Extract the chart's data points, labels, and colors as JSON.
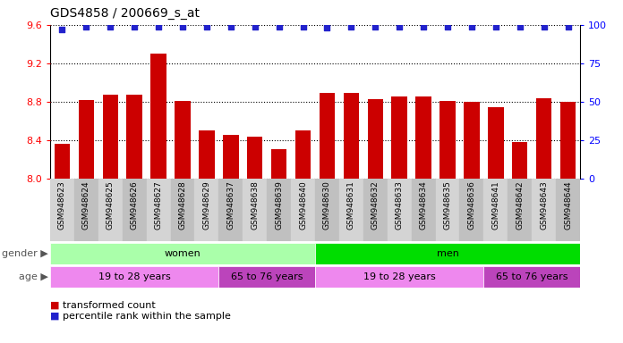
{
  "title": "GDS4858 / 200669_s_at",
  "samples": [
    "GSM948623",
    "GSM948624",
    "GSM948625",
    "GSM948626",
    "GSM948627",
    "GSM948628",
    "GSM948629",
    "GSM948637",
    "GSM948638",
    "GSM948639",
    "GSM948640",
    "GSM948630",
    "GSM948631",
    "GSM948632",
    "GSM948633",
    "GSM948634",
    "GSM948635",
    "GSM948636",
    "GSM948641",
    "GSM948642",
    "GSM948643",
    "GSM948644"
  ],
  "bar_values": [
    8.36,
    8.82,
    8.87,
    8.87,
    9.3,
    8.81,
    8.5,
    8.46,
    8.44,
    8.31,
    8.5,
    8.89,
    8.89,
    8.83,
    8.86,
    8.86,
    8.81,
    8.8,
    8.74,
    8.38,
    8.84,
    8.8
  ],
  "percentile_values": [
    97,
    99,
    99,
    99,
    99,
    99,
    99,
    99,
    99,
    99,
    99,
    98,
    99,
    99,
    99,
    99,
    99,
    99,
    99,
    99,
    99,
    99
  ],
  "bar_color": "#cc0000",
  "dot_color": "#2222cc",
  "ylim_left": [
    8.0,
    9.6
  ],
  "ylim_right": [
    0,
    100
  ],
  "yticks_left": [
    8.0,
    8.4,
    8.8,
    9.2,
    9.6
  ],
  "yticks_right": [
    0,
    25,
    50,
    75,
    100
  ],
  "gender_groups": [
    {
      "label": "women",
      "start": 0,
      "end": 11,
      "color": "#aaffaa"
    },
    {
      "label": "men",
      "start": 11,
      "end": 22,
      "color": "#00dd00"
    }
  ],
  "age_groups": [
    {
      "label": "19 to 28 years",
      "start": 0,
      "end": 7,
      "color": "#ee88ee"
    },
    {
      "label": "65 to 76 years",
      "start": 7,
      "end": 11,
      "color": "#cc55cc"
    },
    {
      "label": "19 to 28 years",
      "start": 11,
      "end": 18,
      "color": "#ee88ee"
    },
    {
      "label": "65 to 76 years",
      "start": 18,
      "end": 22,
      "color": "#cc55cc"
    }
  ],
  "legend_items": [
    {
      "label": "transformed count",
      "color": "#cc0000"
    },
    {
      "label": "percentile rank within the sample",
      "color": "#2222cc"
    }
  ],
  "background_color": "#ffffff",
  "col_colors": [
    "#d4d4d4",
    "#c0c0c0"
  ]
}
